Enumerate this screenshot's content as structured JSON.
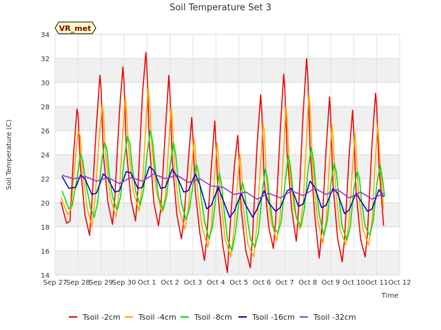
{
  "chart_data": {
    "type": "line",
    "title": "Soil Temperature Set 3",
    "xlabel": "Time",
    "ylabel": "Soil Temperature (C)",
    "badge": "VR_met",
    "ylim": [
      14,
      34
    ],
    "yticks": [
      14,
      16,
      18,
      20,
      22,
      24,
      26,
      28,
      30,
      32,
      34
    ],
    "xlim": [
      0,
      15
    ],
    "xticks": [
      {
        "v": 0,
        "label": "Sep 27"
      },
      {
        "v": 1,
        "label": "Sep 28"
      },
      {
        "v": 2,
        "label": "Sep 29"
      },
      {
        "v": 3,
        "label": "Sep 30"
      },
      {
        "v": 4,
        "label": "Oct 1"
      },
      {
        "v": 5,
        "label": "Oct 2"
      },
      {
        "v": 6,
        "label": "Oct 3"
      },
      {
        "v": 7,
        "label": "Oct 4"
      },
      {
        "v": 8,
        "label": "Oct 5"
      },
      {
        "v": 9,
        "label": "Oct 6"
      },
      {
        "v": 10,
        "label": "Oct 7"
      },
      {
        "v": 11,
        "label": "Oct 8"
      },
      {
        "v": 12,
        "label": "Oct 9"
      },
      {
        "v": 13,
        "label": "Oct 10"
      },
      {
        "v": 14,
        "label": "Oct 11"
      },
      {
        "v": 15,
        "label": "Oct 12"
      }
    ],
    "grid": true,
    "legend_position": "bottom",
    "series": [
      {
        "name": "Tsoil -2cm",
        "color": "#ee0000",
        "x": [
          0.25,
          0.5,
          0.65,
          0.8,
          0.95,
          1.0,
          1.1,
          1.3,
          1.5,
          1.6,
          1.8,
          1.95,
          2.0,
          2.1,
          2.3,
          2.5,
          2.6,
          2.8,
          2.95,
          3.0,
          3.1,
          3.3,
          3.5,
          3.6,
          3.8,
          3.95,
          4.0,
          4.1,
          4.3,
          4.5,
          4.6,
          4.8,
          4.95,
          5.0,
          5.1,
          5.3,
          5.5,
          5.6,
          5.8,
          5.95,
          6.0,
          6.1,
          6.3,
          6.5,
          6.6,
          6.8,
          6.95,
          7.0,
          7.1,
          7.3,
          7.5,
          7.6,
          7.8,
          7.95,
          8.0,
          8.1,
          8.3,
          8.5,
          8.6,
          8.8,
          8.95,
          9.0,
          9.1,
          9.3,
          9.5,
          9.6,
          9.8,
          9.95,
          10.0,
          10.1,
          10.3,
          10.5,
          10.6,
          10.8,
          10.95,
          11.0,
          11.1,
          11.3,
          11.5,
          11.6,
          11.8,
          11.95,
          12.0,
          12.1,
          12.3,
          12.5,
          12.6,
          12.8,
          12.95,
          13.0,
          13.1,
          13.3,
          13.5,
          13.6,
          13.8,
          13.95,
          14.0,
          14.1,
          14.3
        ],
        "y": [
          20.1,
          18.3,
          18.5,
          24.0,
          27.8,
          27.3,
          23.0,
          19.0,
          17.3,
          20.0,
          26.5,
          30.6,
          29.5,
          24.0,
          20.0,
          18.2,
          20.5,
          27.5,
          31.3,
          30.0,
          24.5,
          20.3,
          18.5,
          21.0,
          29.0,
          32.5,
          31.0,
          25.0,
          20.0,
          18.1,
          19.5,
          26.0,
          30.6,
          29.0,
          23.5,
          19.0,
          17.0,
          18.5,
          23.5,
          27.1,
          25.5,
          21.0,
          17.5,
          15.2,
          17.0,
          23.0,
          26.8,
          25.0,
          20.5,
          16.5,
          14.2,
          17.5,
          23.0,
          25.6,
          24.0,
          19.5,
          16.0,
          14.6,
          17.5,
          25.0,
          29.0,
          27.5,
          22.0,
          18.0,
          16.2,
          18.5,
          26.0,
          30.7,
          29.5,
          24.0,
          19.5,
          16.8,
          19.5,
          27.5,
          32.0,
          30.5,
          24.5,
          19.0,
          15.4,
          17.5,
          24.5,
          28.8,
          27.0,
          21.5,
          17.0,
          15.1,
          17.0,
          24.0,
          27.7,
          26.0,
          21.0,
          17.0,
          15.5,
          17.5,
          25.0,
          29.1,
          28.0,
          23.0,
          18.1
        ]
      },
      {
        "name": "Tsoil -4cm",
        "color": "#ffa500",
        "x": [
          0.25,
          0.55,
          0.7,
          0.85,
          1.0,
          1.1,
          1.2,
          1.4,
          1.6,
          1.75,
          1.9,
          2.05,
          2.1,
          2.2,
          2.4,
          2.65,
          2.8,
          2.95,
          3.05,
          3.1,
          3.2,
          3.4,
          3.65,
          3.8,
          3.95,
          4.05,
          4.1,
          4.2,
          4.4,
          4.65,
          4.8,
          4.95,
          5.05,
          5.1,
          5.2,
          5.4,
          5.65,
          5.8,
          5.95,
          6.05,
          6.1,
          6.2,
          6.4,
          6.65,
          6.8,
          6.95,
          7.05,
          7.1,
          7.2,
          7.4,
          7.65,
          7.8,
          7.95,
          8.05,
          8.1,
          8.2,
          8.4,
          8.65,
          8.8,
          8.95,
          9.05,
          9.1,
          9.2,
          9.4,
          9.65,
          9.8,
          9.95,
          10.05,
          10.1,
          10.2,
          10.4,
          10.65,
          10.8,
          10.95,
          11.05,
          11.1,
          11.2,
          11.4,
          11.65,
          11.8,
          11.95,
          12.05,
          12.1,
          12.2,
          12.4,
          12.65,
          12.8,
          12.95,
          13.05,
          13.1,
          13.2,
          13.4,
          13.65,
          13.8,
          13.95,
          14.05,
          14.1,
          14.2,
          14.3
        ],
        "y": [
          20.5,
          19.0,
          19.5,
          23.0,
          26.0,
          25.5,
          22.5,
          19.5,
          18.0,
          20.5,
          25.0,
          28.1,
          27.5,
          24.0,
          20.5,
          18.8,
          21.0,
          26.0,
          28.8,
          28.0,
          24.5,
          21.0,
          19.3,
          21.5,
          26.5,
          29.6,
          28.5,
          25.0,
          21.0,
          19.2,
          20.5,
          25.0,
          28.0,
          27.0,
          23.0,
          19.5,
          17.8,
          19.5,
          23.0,
          25.3,
          24.5,
          21.0,
          18.0,
          16.3,
          18.0,
          22.5,
          25.0,
          24.0,
          20.5,
          17.0,
          15.5,
          18.0,
          22.0,
          24.0,
          23.0,
          19.5,
          16.5,
          15.5,
          18.5,
          23.5,
          26.6,
          26.0,
          22.0,
          18.5,
          16.8,
          19.0,
          24.5,
          28.0,
          27.0,
          23.0,
          19.5,
          17.8,
          20.0,
          25.5,
          29.0,
          28.0,
          23.5,
          19.0,
          16.6,
          18.5,
          23.5,
          26.5,
          25.5,
          21.5,
          17.8,
          16.5,
          18.5,
          23.0,
          25.8,
          24.5,
          21.0,
          17.8,
          16.5,
          18.5,
          24.0,
          26.5,
          25.0,
          22.0,
          19.5
        ]
      },
      {
        "name": "Tsoil -8cm",
        "color": "#00dd00",
        "x": [
          0.3,
          0.6,
          0.75,
          0.95,
          1.1,
          1.2,
          1.35,
          1.55,
          1.7,
          1.85,
          2.0,
          2.15,
          2.25,
          2.35,
          2.5,
          2.7,
          2.85,
          3.0,
          3.15,
          3.25,
          3.35,
          3.5,
          3.7,
          3.85,
          4.0,
          4.15,
          4.25,
          4.35,
          4.5,
          4.7,
          4.85,
          5.0,
          5.15,
          5.25,
          5.35,
          5.5,
          5.7,
          5.85,
          6.0,
          6.15,
          6.25,
          6.35,
          6.5,
          6.7,
          6.85,
          7.0,
          7.15,
          7.25,
          7.35,
          7.5,
          7.7,
          7.85,
          8.0,
          8.15,
          8.25,
          8.35,
          8.5,
          8.7,
          8.85,
          9.0,
          9.15,
          9.25,
          9.35,
          9.5,
          9.7,
          9.85,
          10.0,
          10.15,
          10.25,
          10.35,
          10.5,
          10.7,
          10.85,
          11.0,
          11.15,
          11.25,
          11.35,
          11.5,
          11.7,
          11.85,
          12.0,
          12.15,
          12.25,
          12.35,
          12.5,
          12.7,
          12.85,
          13.0,
          13.15,
          13.25,
          13.35,
          13.5,
          13.7,
          13.85,
          14.0,
          14.15,
          14.25,
          14.35
        ],
        "y": [
          21.0,
          19.5,
          19.8,
          22.0,
          24.0,
          23.5,
          21.5,
          19.5,
          18.8,
          20.0,
          23.0,
          25.0,
          24.5,
          22.5,
          20.5,
          19.4,
          20.5,
          23.5,
          25.5,
          25.0,
          23.0,
          21.0,
          19.8,
          21.0,
          24.0,
          26.0,
          25.0,
          23.0,
          20.5,
          19.4,
          20.5,
          23.0,
          25.0,
          24.0,
          22.0,
          20.0,
          18.6,
          19.5,
          21.5,
          23.2,
          22.5,
          20.5,
          18.5,
          17.0,
          18.0,
          20.5,
          22.5,
          21.5,
          19.5,
          17.0,
          16.0,
          17.5,
          20.0,
          21.7,
          21.0,
          19.0,
          17.0,
          16.3,
          17.5,
          20.5,
          22.8,
          22.0,
          20.0,
          18.0,
          17.5,
          18.5,
          21.5,
          23.9,
          23.0,
          21.0,
          18.8,
          18.0,
          19.5,
          22.5,
          24.6,
          23.5,
          21.5,
          19.0,
          17.3,
          18.5,
          21.5,
          23.3,
          22.5,
          20.5,
          18.0,
          16.9,
          18.0,
          21.0,
          22.6,
          22.0,
          20.0,
          18.0,
          17.3,
          18.5,
          21.5,
          23.1,
          22.0,
          20.5
        ]
      },
      {
        "name": "Tsoil -16cm",
        "color": "#0000cc",
        "x": [
          0.3,
          0.6,
          0.9,
          1.1,
          1.3,
          1.6,
          1.8,
          2.1,
          2.3,
          2.6,
          2.8,
          3.1,
          3.3,
          3.6,
          3.8,
          4.1,
          4.3,
          4.6,
          4.8,
          5.1,
          5.3,
          5.6,
          5.8,
          6.1,
          6.3,
          6.6,
          6.8,
          7.1,
          7.3,
          7.6,
          7.8,
          8.1,
          8.3,
          8.6,
          8.8,
          9.1,
          9.3,
          9.6,
          9.8,
          10.1,
          10.3,
          10.6,
          10.8,
          11.1,
          11.3,
          11.6,
          11.8,
          12.1,
          12.3,
          12.6,
          12.8,
          13.1,
          13.3,
          13.6,
          13.8,
          14.1,
          14.3
        ],
        "y": [
          22.2,
          21.2,
          21.3,
          22.3,
          22.0,
          20.7,
          20.8,
          22.4,
          22.0,
          20.9,
          21.0,
          22.6,
          22.5,
          21.2,
          21.3,
          23.0,
          22.7,
          21.2,
          21.3,
          22.8,
          22.2,
          20.9,
          21.0,
          22.4,
          21.5,
          19.5,
          19.8,
          21.3,
          20.3,
          18.8,
          19.3,
          20.8,
          19.8,
          18.8,
          19.5,
          21.0,
          20.0,
          19.3,
          19.6,
          21.0,
          21.2,
          19.7,
          19.9,
          21.8,
          21.3,
          19.6,
          19.8,
          21.2,
          20.8,
          19.1,
          19.4,
          20.8,
          20.2,
          19.3,
          19.5,
          21.1,
          20.5
        ]
      },
      {
        "name": "Tsoil -32cm",
        "color": "#9933cc",
        "x": [
          0.3,
          0.8,
          1.3,
          1.8,
          2.3,
          2.8,
          3.3,
          3.8,
          4.3,
          4.8,
          5.3,
          5.8,
          6.3,
          6.8,
          7.3,
          7.8,
          8.3,
          8.8,
          9.3,
          9.8,
          10.3,
          10.8,
          11.3,
          11.8,
          12.3,
          12.8,
          13.3,
          13.8,
          14.3
        ],
        "y": [
          22.3,
          22.0,
          22.2,
          21.8,
          22.1,
          21.6,
          22.1,
          21.8,
          22.4,
          22.0,
          22.3,
          21.7,
          22.0,
          21.4,
          21.3,
          20.7,
          20.9,
          20.3,
          20.8,
          20.4,
          21.0,
          20.6,
          21.2,
          20.7,
          21.1,
          20.4,
          20.9,
          20.3,
          20.8
        ]
      }
    ]
  }
}
